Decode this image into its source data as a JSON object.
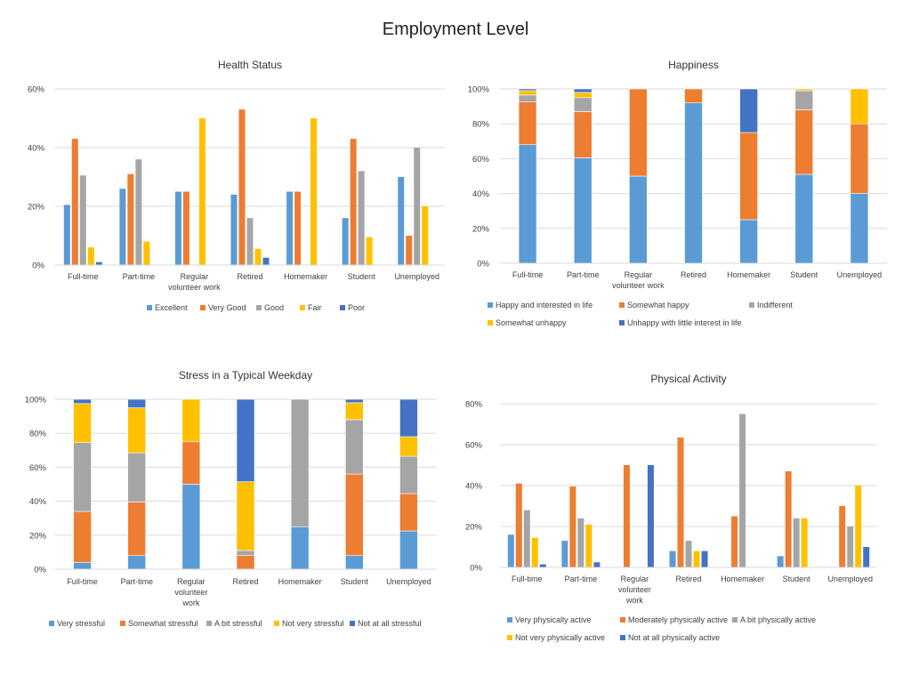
{
  "page_title": "Employment Level",
  "colors": {
    "blue": "#5b9bd5",
    "orange": "#ed7d31",
    "gray": "#a5a5a5",
    "yellow": "#ffc000",
    "darkblue": "#4472c4"
  },
  "chart_data": [
    {
      "id": "health",
      "type": "bar",
      "title": "Health Status",
      "categories": [
        "Full-time",
        "Part-time",
        "Regular volunteer work",
        "Retired",
        "Homemaker",
        "Student",
        "Unemployed"
      ],
      "ylim": [
        0,
        60
      ],
      "yticks": [
        0,
        20,
        40,
        60
      ],
      "yticklabels": [
        "0%",
        "20%",
        "40%",
        "60%"
      ],
      "series": [
        {
          "name": "Excellent",
          "color": "#5b9bd5",
          "values": [
            20.5,
            26,
            25,
            24,
            25,
            16,
            30
          ]
        },
        {
          "name": "Very Good",
          "color": "#ed7d31",
          "values": [
            43,
            31,
            25,
            53,
            25,
            43,
            10
          ]
        },
        {
          "name": "Good",
          "color": "#a5a5a5",
          "values": [
            30.5,
            36,
            0,
            16,
            0,
            32,
            40
          ]
        },
        {
          "name": "Fair",
          "color": "#ffc000",
          "values": [
            6,
            8,
            50,
            5.5,
            50,
            9.5,
            20
          ]
        },
        {
          "name": "Poor",
          "color": "#4472c4",
          "values": [
            1,
            0,
            0,
            2.5,
            0,
            0,
            0
          ]
        }
      ]
    },
    {
      "id": "happiness",
      "type": "bar",
      "stacked": true,
      "title": "Happiness",
      "categories": [
        "Full-time",
        "Part-time",
        "Regular volunteer work",
        "Retired",
        "Homemaker",
        "Student",
        "Unemployed"
      ],
      "ylim": [
        0,
        100
      ],
      "yticks": [
        0,
        20,
        40,
        60,
        80,
        100
      ],
      "yticklabels": [
        "0%",
        "20%",
        "40%",
        "60%",
        "80%",
        "100%"
      ],
      "series": [
        {
          "name": "Happy and interested in life",
          "color": "#5b9bd5",
          "values": [
            68,
            60.5,
            50,
            92,
            25,
            51,
            40
          ]
        },
        {
          "name": "Somewhat happy",
          "color": "#ed7d31",
          "values": [
            24.5,
            26.5,
            50,
            8,
            50,
            37,
            40
          ]
        },
        {
          "name": "Indifferent",
          "color": "#a5a5a5",
          "values": [
            4,
            8,
            0,
            0,
            0,
            11,
            0
          ]
        },
        {
          "name": "Somewhat unhappy",
          "color": "#ffc000",
          "values": [
            2.5,
            3,
            0,
            0,
            0,
            1,
            20
          ]
        },
        {
          "name": "Unhappy with little interest in life",
          "color": "#4472c4",
          "values": [
            1,
            2,
            0,
            0,
            25,
            0,
            0
          ]
        }
      ]
    },
    {
      "id": "stress",
      "type": "bar",
      "stacked": true,
      "title": "Stress in a Typical Weekday",
      "categories": [
        "Full-time",
        "Part-time",
        "Regular volunteer work",
        "Retired",
        "Homemaker",
        "Student",
        "Unemployed"
      ],
      "ylim": [
        0,
        100
      ],
      "yticks": [
        0,
        20,
        40,
        60,
        80,
        100
      ],
      "yticklabels": [
        "0%",
        "20%",
        "40%",
        "60%",
        "80%",
        "100%"
      ],
      "series": [
        {
          "name": "Very stressful",
          "color": "#5b9bd5",
          "values": [
            4,
            8,
            50,
            0,
            25,
            8,
            22.5
          ]
        },
        {
          "name": "Somewhat stressful",
          "color": "#ed7d31",
          "values": [
            30,
            31.5,
            25,
            8,
            0,
            48,
            22
          ]
        },
        {
          "name": "A bit stressful",
          "color": "#a5a5a5",
          "values": [
            40.5,
            29,
            0,
            3,
            75,
            32,
            22
          ]
        },
        {
          "name": "Not very stressful",
          "color": "#ffc000",
          "values": [
            23,
            26.5,
            25,
            40.5,
            0,
            10,
            11.5
          ]
        },
        {
          "name": "Not at all stressful",
          "color": "#4472c4",
          "values": [
            2.5,
            5,
            0,
            48.5,
            0,
            2,
            22
          ]
        }
      ]
    },
    {
      "id": "activity",
      "type": "bar",
      "title": "Physical Activity",
      "categories": [
        "Full-time",
        "Part-time",
        "Regular volunteer work",
        "Retired",
        "Homemaker",
        "Student",
        "Unemployed"
      ],
      "ylim": [
        0,
        80
      ],
      "yticks": [
        0,
        20,
        40,
        60,
        80
      ],
      "yticklabels": [
        "0%",
        "20%",
        "40%",
        "60%",
        "80%"
      ],
      "series": [
        {
          "name": "Very physically active",
          "color": "#5b9bd5",
          "values": [
            16,
            13,
            0,
            8,
            0,
            5.5,
            0
          ]
        },
        {
          "name": "Moderately physically active",
          "color": "#ed7d31",
          "values": [
            41,
            39.5,
            50,
            63.5,
            25,
            47,
            30
          ]
        },
        {
          "name": "A bit physically active",
          "color": "#a5a5a5",
          "values": [
            28,
            24,
            0,
            13,
            75,
            24,
            20
          ]
        },
        {
          "name": "Not very physically active",
          "color": "#ffc000",
          "values": [
            14.5,
            21,
            0,
            8,
            0,
            24,
            40
          ]
        },
        {
          "name": "Not at all physically active",
          "color": "#4472c4",
          "values": [
            1.5,
            2.5,
            50,
            8,
            0,
            0,
            10
          ]
        }
      ]
    }
  ]
}
